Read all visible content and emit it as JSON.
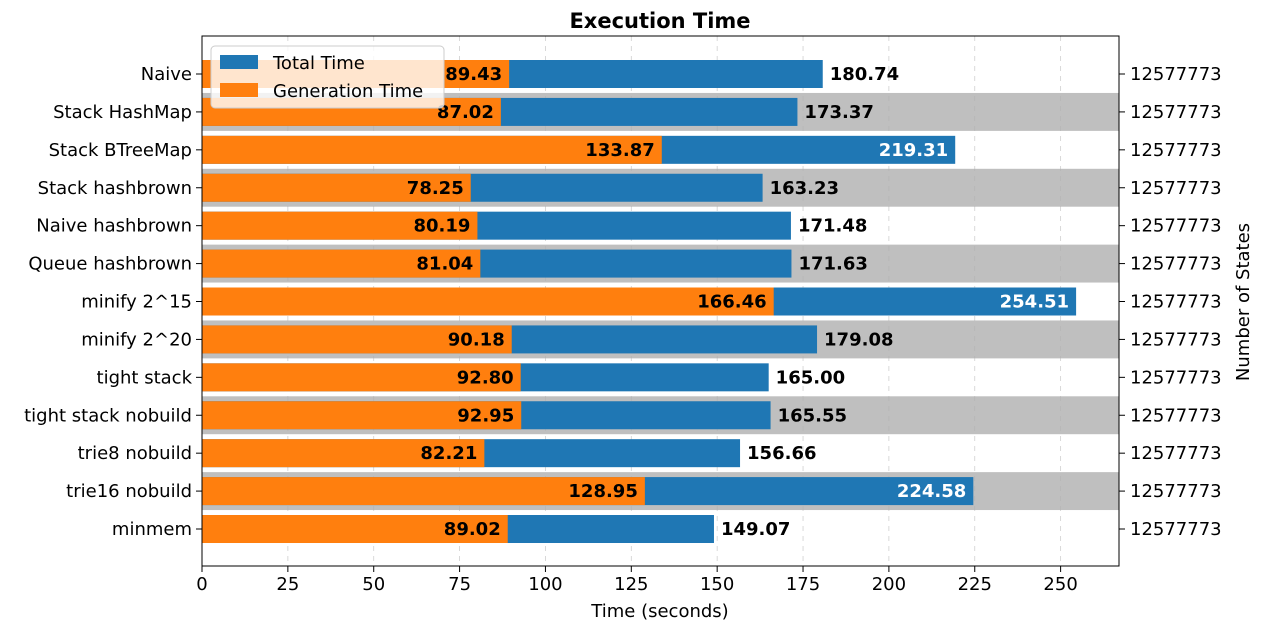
{
  "chart_data": {
    "type": "bar",
    "orientation": "horizontal",
    "stacking": "overlay",
    "title": "Execution Time",
    "xlabel": "Time (seconds)",
    "ylabel_right": "Number of States",
    "xlim": [
      0,
      267
    ],
    "x_ticks": [
      "0",
      "25",
      "50",
      "75",
      "100",
      "125",
      "150",
      "175",
      "200",
      "225",
      "250"
    ],
    "grid": "x-dashed",
    "legend_position": "top-left",
    "categories": [
      "Naive",
      "Stack HashMap",
      "Stack BTreeMap",
      "Stack hashbrown",
      "Naive hashbrown",
      "Queue hashbrown",
      "minify 2^15",
      "minify 2^20",
      "tight stack",
      "tight stack nobuild",
      "trie8 nobuild",
      "trie16 nobuild",
      "minmem"
    ],
    "series": [
      {
        "name": "Total Time",
        "color": "#1f77b4",
        "values": [
          180.74,
          173.37,
          219.31,
          163.23,
          171.48,
          171.63,
          254.51,
          179.08,
          165.0,
          165.55,
          156.66,
          224.58,
          149.07
        ],
        "labels": [
          "180.74",
          "173.37",
          "219.31",
          "163.23",
          "171.48",
          "171.63",
          "254.51",
          "179.08",
          "165.00",
          "165.55",
          "156.66",
          "224.58",
          "149.07"
        ]
      },
      {
        "name": "Generation Time",
        "color": "#ff7f0e",
        "values": [
          89.43,
          87.02,
          133.87,
          78.25,
          80.19,
          81.04,
          166.46,
          90.18,
          92.8,
          92.95,
          82.21,
          128.95,
          89.02
        ],
        "labels": [
          "89.43",
          "87.02",
          "133.87",
          "78.25",
          "80.19",
          "81.04",
          "166.46",
          "90.18",
          "92.80",
          "92.95",
          "82.21",
          "128.95",
          "89.02"
        ]
      }
    ],
    "right_tick_labels": [
      "12577773",
      "12577773",
      "12577773",
      "12577773",
      "12577773",
      "12577773",
      "12577773",
      "12577773",
      "12577773",
      "12577773",
      "12577773",
      "12577773",
      "12577773"
    ],
    "row_shading_color": "#bfbfbf",
    "shaded_rows": [
      1,
      3,
      5,
      7,
      9,
      11
    ]
  }
}
